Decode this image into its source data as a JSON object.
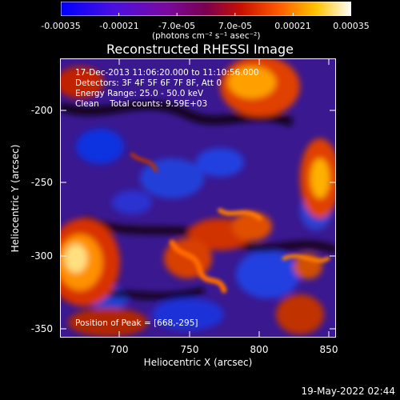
{
  "colorbar": {
    "tick_labels": [
      "-0.00035",
      "-0.00021",
      "-7.0e-05",
      "7.0e-05",
      "0.00021",
      "0.00035"
    ],
    "units": "(photons cm⁻² s⁻¹ asec⁻²)",
    "colors": [
      "#0000ff",
      "#5a00c8",
      "#8c0064",
      "#c81400",
      "#ff6400",
      "#ffc800",
      "#ffffff"
    ]
  },
  "title": "Reconstructed RHESSI Image",
  "info": {
    "time_range": "17-Dec-2013 11:06:20.000 to 11:10:56.000",
    "detectors": "Detectors: 3F 4F 5F 6F 7F 8F, Att 0",
    "energy": "Energy Range: 25.0 - 50.0 keV",
    "clean": "Clean    Total counts: 9.59E+03"
  },
  "peak": "Position of Peak = [668,-295]",
  "axes": {
    "xlabel": "Heliocentric X (arcsec)",
    "ylabel": "Heliocentric Y (arcsec)",
    "x_ticks": [
      "700",
      "750",
      "800",
      "850"
    ],
    "y_ticks": [
      "-200",
      "-250",
      "-300",
      "-350"
    ]
  },
  "timestamp": "19-May-2022 02:44"
}
